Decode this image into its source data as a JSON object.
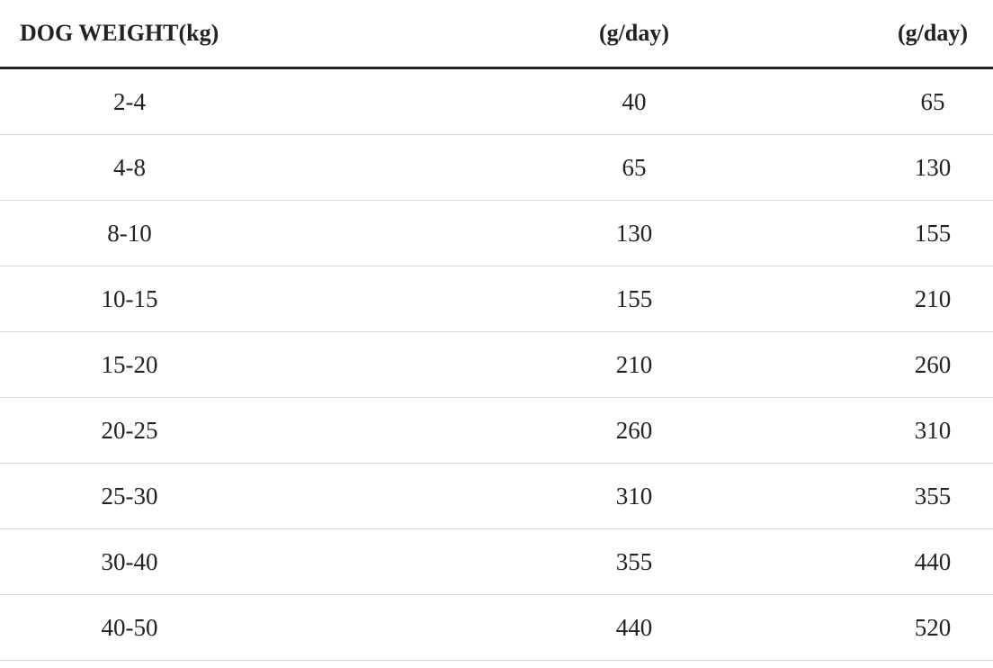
{
  "table": {
    "header": [
      "DOG WEIGHT(kg)",
      "(g/day)",
      "(g/day)"
    ],
    "rows": [
      [
        "2-4",
        "40",
        "65"
      ],
      [
        "4-8",
        "65",
        "130"
      ],
      [
        "8-10",
        "130",
        "155"
      ],
      [
        "10-15",
        "155",
        "210"
      ],
      [
        "15-20",
        "210",
        "260"
      ],
      [
        "20-25",
        "260",
        "310"
      ],
      [
        "25-30",
        "310",
        "355"
      ],
      [
        "30-40",
        "355",
        "440"
      ],
      [
        "40-50",
        "440",
        "520"
      ]
    ]
  }
}
